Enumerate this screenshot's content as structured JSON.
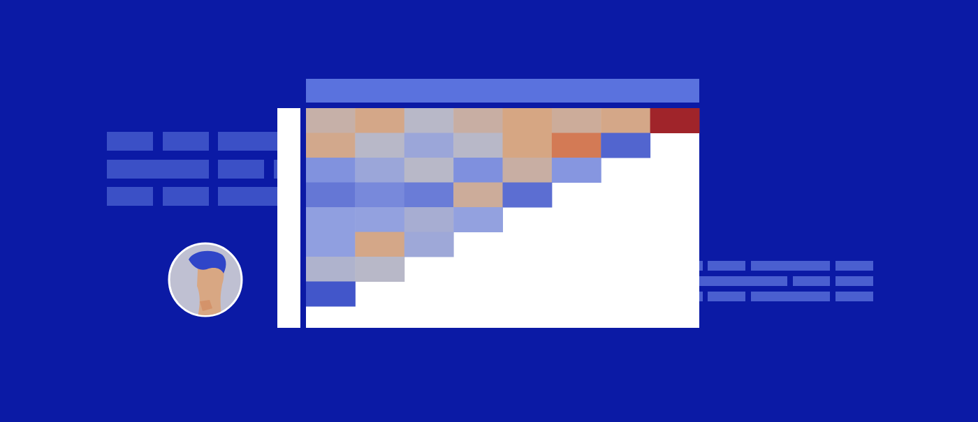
{
  "chart_data": {
    "type": "heatmap",
    "cells": [
      [
        57,
        64,
        50,
        58,
        65,
        60,
        64,
        100
      ],
      [
        63,
        50,
        40,
        50,
        65,
        85,
        10
      ],
      [
        30,
        40,
        50,
        29,
        58,
        32
      ],
      [
        18,
        26,
        20,
        60,
        14
      ],
      [
        36,
        37,
        44,
        37
      ],
      [
        36,
        64,
        41
      ],
      [
        47,
        50
      ],
      [
        3
      ]
    ],
    "color_range": [
      0,
      100
    ],
    "tick_labels": false
  }
}
